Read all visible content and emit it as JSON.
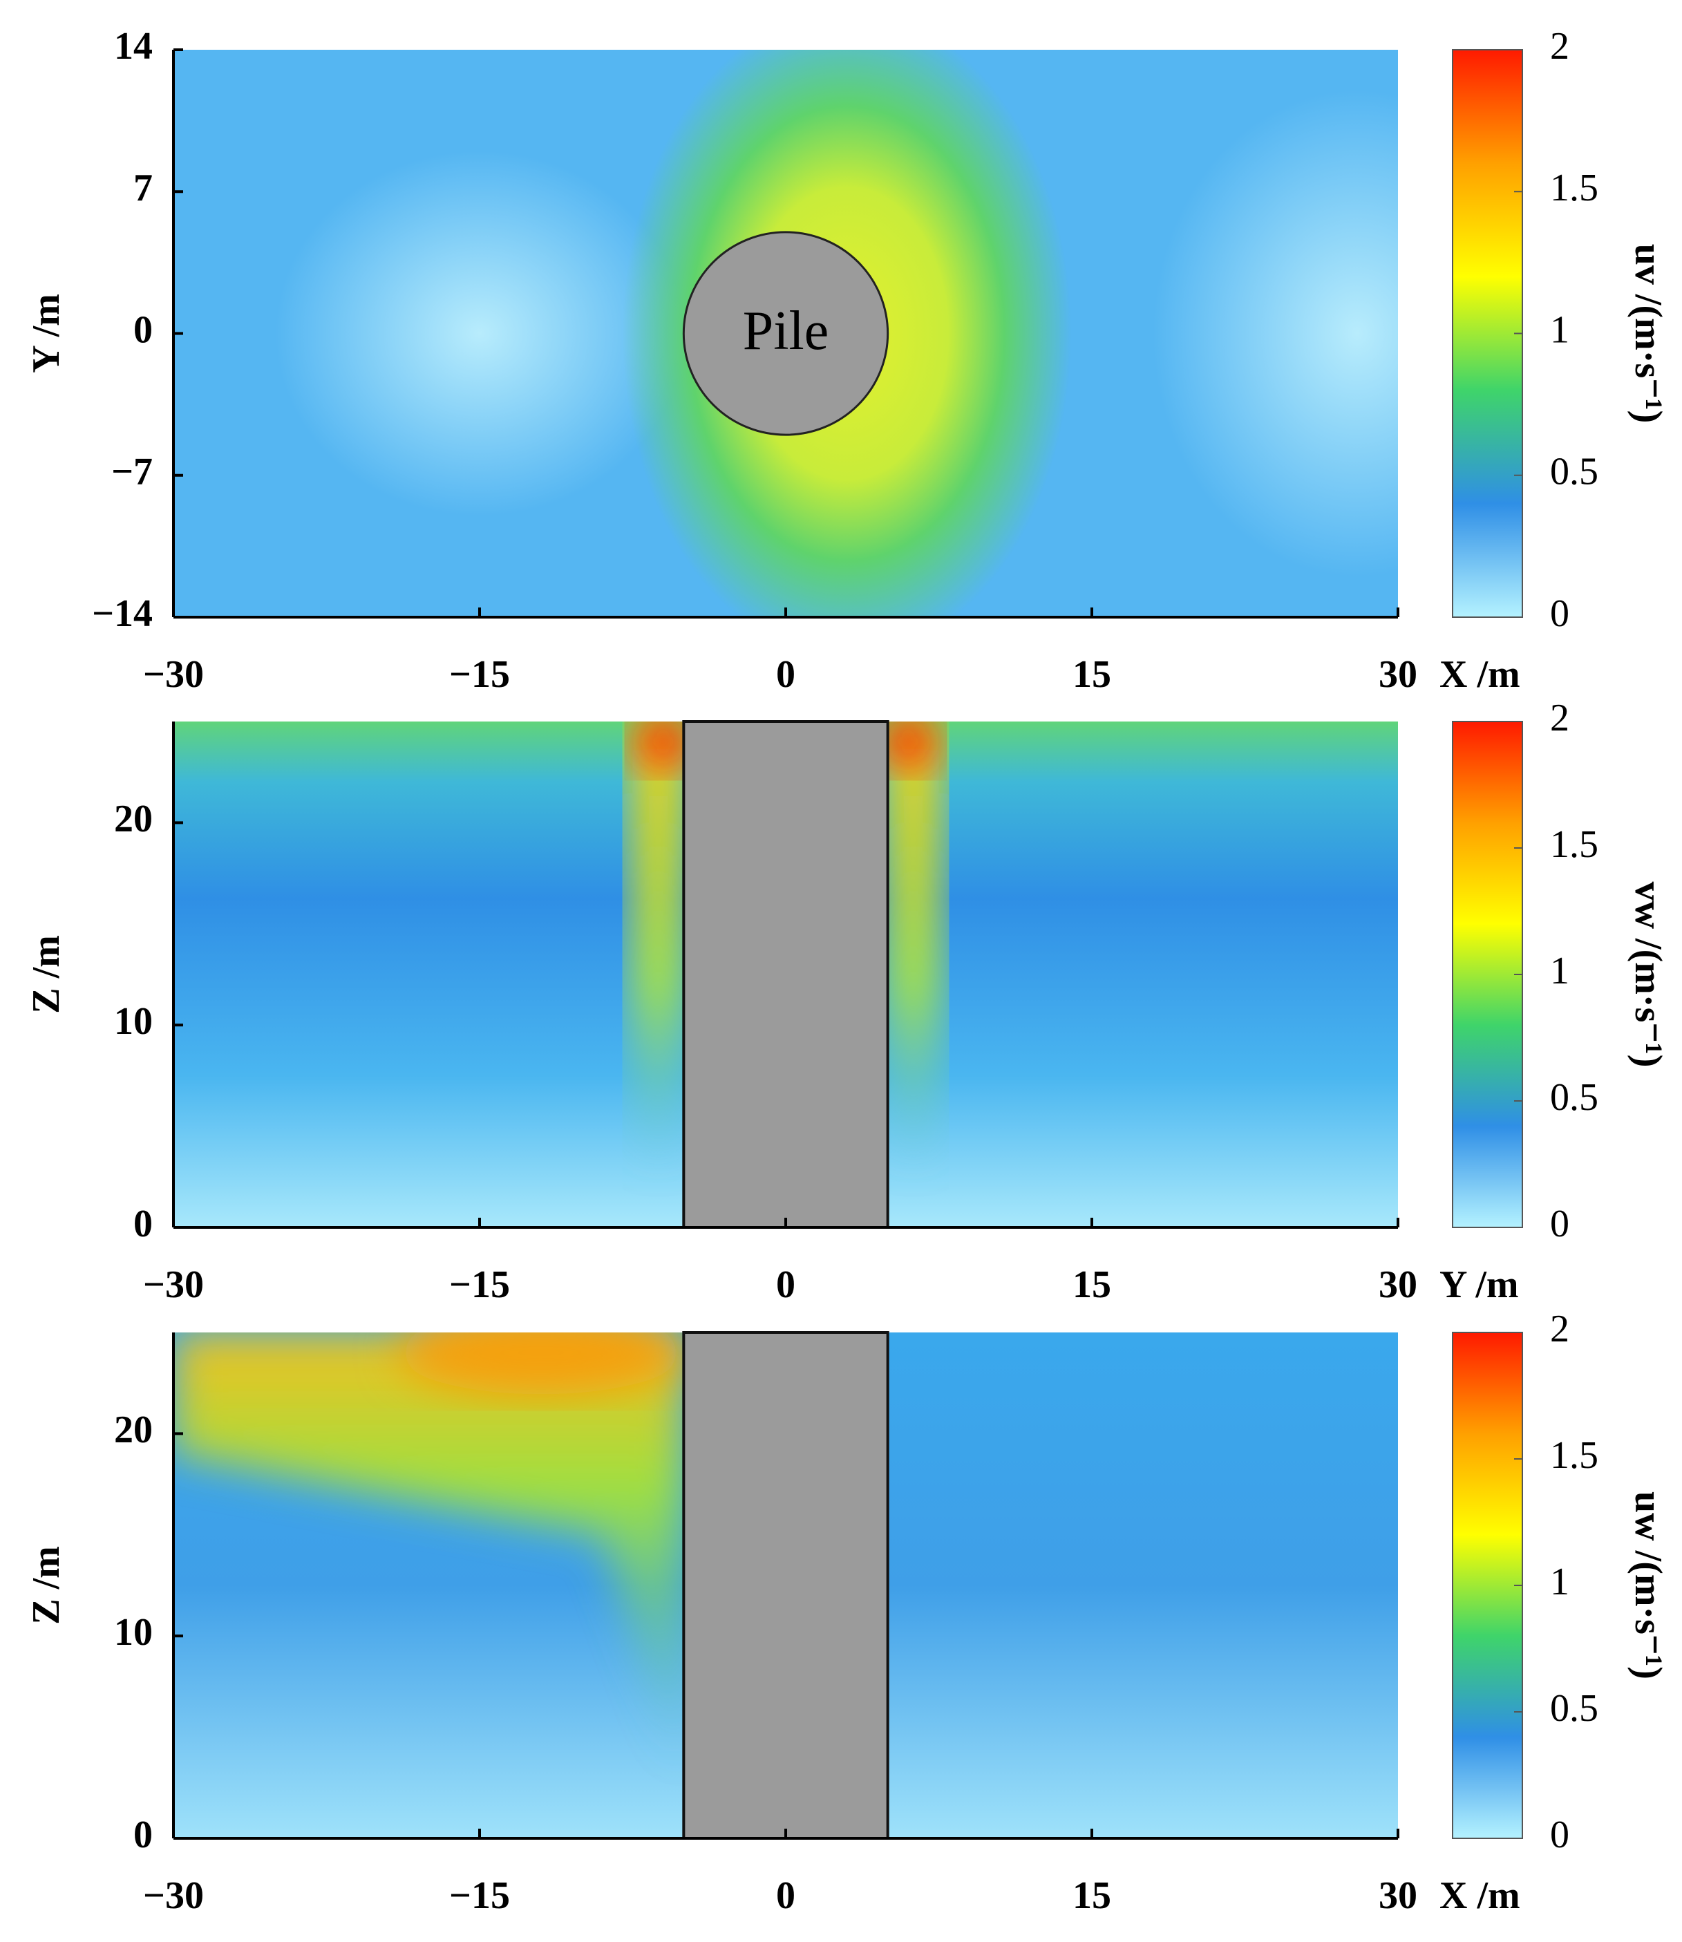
{
  "chart_data": [
    {
      "type": "heatmap",
      "xlabel": "X /m",
      "ylabel": "Y /m",
      "colorbar_label": "uv /(m·s⁻¹)",
      "xlim": [
        -30,
        30
      ],
      "xticks": [
        {
          "value": -30,
          "label": "−30"
        },
        {
          "value": -15,
          "label": "−15"
        },
        0,
        15,
        30
      ],
      "ylim": [
        -14,
        14
      ],
      "yticks": [
        {
          "value": -14,
          "label": "−14"
        },
        {
          "value": -7,
          "label": "−7"
        },
        0,
        7,
        14
      ],
      "pile": {
        "shape": "circle",
        "label": "Pile",
        "center": [
          0,
          0
        ],
        "radius": 5
      },
      "clim": [
        0,
        2
      ],
      "cticks": [
        0,
        0.5,
        1,
        1.5,
        2
      ],
      "colormap": [
        "#b4f2ff",
        "#2f8fe6",
        "#3fd46a",
        "#ffff00",
        "#ffa000",
        "#ff1a00"
      ]
    },
    {
      "type": "heatmap",
      "xlabel": "Y /m",
      "ylabel": "Z /m",
      "colorbar_label": "vw /(m·s⁻¹)",
      "xlim": [
        -30,
        30
      ],
      "xticks": [
        {
          "value": -30,
          "label": "−30"
        },
        {
          "value": -15,
          "label": "−15"
        },
        0,
        15,
        30
      ],
      "ylim": [
        0,
        25
      ],
      "yticks": [
        0,
        10,
        20
      ],
      "pile": {
        "shape": "rect",
        "x": [
          -5,
          5
        ],
        "z": [
          0,
          25
        ]
      },
      "clim": [
        0,
        2
      ],
      "cticks": [
        0,
        0.5,
        1,
        1.5,
        2
      ],
      "colormap": [
        "#b4f2ff",
        "#2f8fe6",
        "#3fd46a",
        "#ffff00",
        "#ffa000",
        "#ff1a00"
      ]
    },
    {
      "type": "heatmap",
      "xlabel": "X /m",
      "ylabel": "Z /m",
      "colorbar_label": "uw /(m·s⁻¹)",
      "xlim": [
        -30,
        30
      ],
      "xticks": [
        {
          "value": -30,
          "label": "−30"
        },
        {
          "value": -15,
          "label": "−15"
        },
        0,
        15,
        30
      ],
      "ylim": [
        0,
        25
      ],
      "yticks": [
        0,
        10,
        20
      ],
      "pile": {
        "shape": "rect",
        "x": [
          -5,
          5
        ],
        "z": [
          0,
          25
        ]
      },
      "clim": [
        0,
        2
      ],
      "cticks": [
        0,
        0.5,
        1,
        1.5,
        2
      ],
      "colormap": [
        "#b4f2ff",
        "#2f8fe6",
        "#3fd46a",
        "#ffff00",
        "#ffa000",
        "#ff1a00"
      ]
    }
  ]
}
